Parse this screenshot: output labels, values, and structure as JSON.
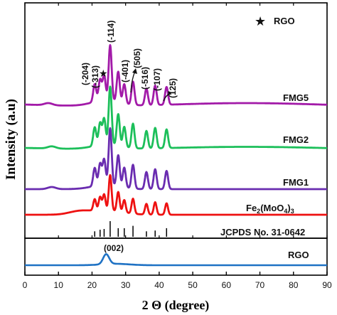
{
  "chart_data": {
    "type": "line",
    "xlabel": "2 Θ (degree)",
    "ylabel": "Intensity (a.u)",
    "xlim": [
      0,
      90
    ],
    "xticks": [
      "0",
      "10",
      "20",
      "30",
      "40",
      "50",
      "60",
      "70",
      "80",
      "90"
    ],
    "legend": {
      "marker": "★",
      "label": "RGO",
      "position": "top-right"
    },
    "series": [
      {
        "name": "FMG5",
        "color": "#a21aa8"
      },
      {
        "name": "FMG2",
        "color": "#1cbf5a"
      },
      {
        "name": "FMG1",
        "color": "#6a2cb0"
      },
      {
        "name": "Fe2(MoO4)3",
        "color": "#ee1111"
      },
      {
        "name": "RGO",
        "color": "#1f72c4"
      }
    ],
    "formula_label": {
      "base": "Fe",
      "sub1": "2",
      "mid": "(MoO",
      "sub2": "4",
      "close": ")",
      "sub3": "3"
    },
    "reference_label": "JCPDS No. 31-0642",
    "reference_lines": [
      20.8,
      22.4,
      23.6,
      25.4,
      27.8,
      29.6,
      32.2,
      36.2,
      38.8,
      42.2
    ],
    "peaks": [
      20.8,
      22.4,
      23.6,
      25.4,
      27.8,
      29.6,
      32.2,
      36.2,
      38.8,
      42.2
    ],
    "peak_annotations": [
      "(-204)",
      "(-313)",
      "(-114)",
      "(-401)",
      "(505)",
      "(-516)",
      "(-107)",
      "(125)"
    ],
    "rgo_peak": {
      "x": 24.2,
      "label": "(002)"
    }
  }
}
